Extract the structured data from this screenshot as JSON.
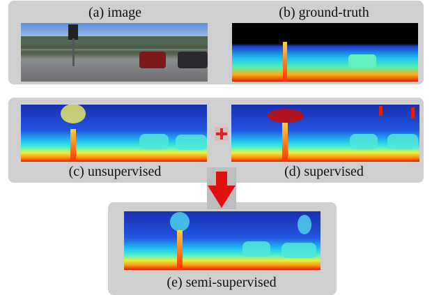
{
  "figure": {
    "panels": [
      {
        "label": "(a) image"
      },
      {
        "label": "(b) ground-truth"
      },
      {
        "label": "(c) unsupervised"
      },
      {
        "label": "(d) supervised"
      },
      {
        "label": "(e) semi-supervised"
      }
    ]
  }
}
